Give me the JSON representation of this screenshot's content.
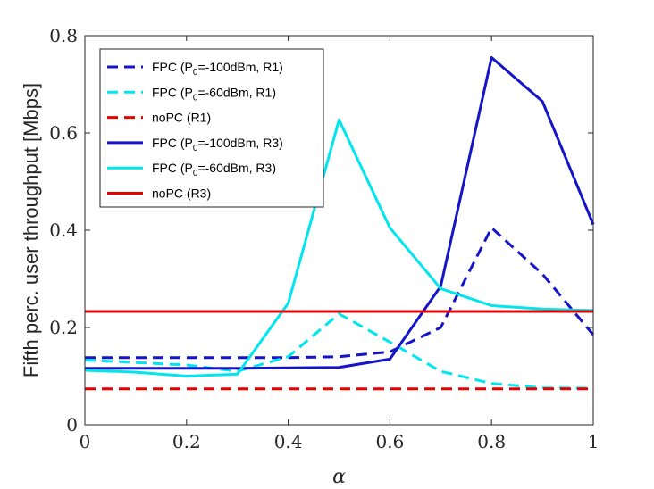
{
  "chart_data": {
    "type": "line",
    "title": "",
    "xlabel": "α",
    "ylabel": "Fifth perc. user throughput [Mbps]",
    "xlim": [
      0,
      1
    ],
    "ylim": [
      0,
      0.8
    ],
    "xticks": [
      0,
      0.2,
      0.4,
      0.6,
      0.8,
      1
    ],
    "xtick_labels": [
      "0",
      "0.2",
      "0.4",
      "0.6",
      "0.8",
      "1"
    ],
    "yticks": [
      0,
      0.2,
      0.4,
      0.6,
      0.8
    ],
    "ytick_labels": [
      "0",
      "0.2",
      "0.4",
      "0.6",
      "0.8"
    ],
    "grid": false,
    "legend_position": "top-left",
    "x": [
      0,
      0.1,
      0.2,
      0.3,
      0.4,
      0.5,
      0.6,
      0.7,
      0.8,
      0.9,
      1.0
    ],
    "series": [
      {
        "name": "FPC (P0=-100dBm, R1)",
        "legend_parts": [
          "FPC (P",
          "0",
          "=-100dBm, R1)"
        ],
        "color": "#1414c8",
        "dash": true,
        "values": [
          0.138,
          0.138,
          0.138,
          0.138,
          0.138,
          0.14,
          0.15,
          0.2,
          0.405,
          0.31,
          0.185
        ]
      },
      {
        "name": "FPC (P0=-60dBm, R1)",
        "legend_parts": [
          "FPC (P",
          "0",
          "=-60dBm, R1)"
        ],
        "color": "#00e5ee",
        "dash": true,
        "values": [
          0.133,
          0.128,
          0.123,
          0.11,
          0.14,
          0.228,
          0.17,
          0.11,
          0.085,
          0.076,
          0.075
        ]
      },
      {
        "name": "noPC (R1)",
        "legend_parts": [
          "noPC (R1)"
        ],
        "color": "#e60000",
        "dash": true,
        "values": [
          0.074,
          0.074,
          0.074,
          0.074,
          0.074,
          0.074,
          0.074,
          0.074,
          0.074,
          0.074,
          0.074
        ]
      },
      {
        "name": "FPC (P0=-100dBm, R3)",
        "legend_parts": [
          "FPC (P",
          "0",
          "=-100dBm, R3)"
        ],
        "color": "#1414c8",
        "dash": false,
        "values": [
          0.116,
          0.116,
          0.116,
          0.116,
          0.117,
          0.118,
          0.135,
          0.285,
          0.755,
          0.665,
          0.412
        ]
      },
      {
        "name": "FPC (P0=-60dBm, R3)",
        "legend_parts": [
          "FPC (P",
          "0",
          "=-60dBm, R3)"
        ],
        "color": "#00e5ee",
        "dash": false,
        "values": [
          0.112,
          0.108,
          0.1,
          0.104,
          0.25,
          0.627,
          0.405,
          0.28,
          0.245,
          0.238,
          0.235
        ]
      },
      {
        "name": "noPC (R3)",
        "legend_parts": [
          "noPC (R3)"
        ],
        "color": "#e60000",
        "dash": false,
        "values": [
          0.233,
          0.233,
          0.233,
          0.233,
          0.233,
          0.233,
          0.233,
          0.233,
          0.233,
          0.233,
          0.233
        ]
      }
    ]
  }
}
